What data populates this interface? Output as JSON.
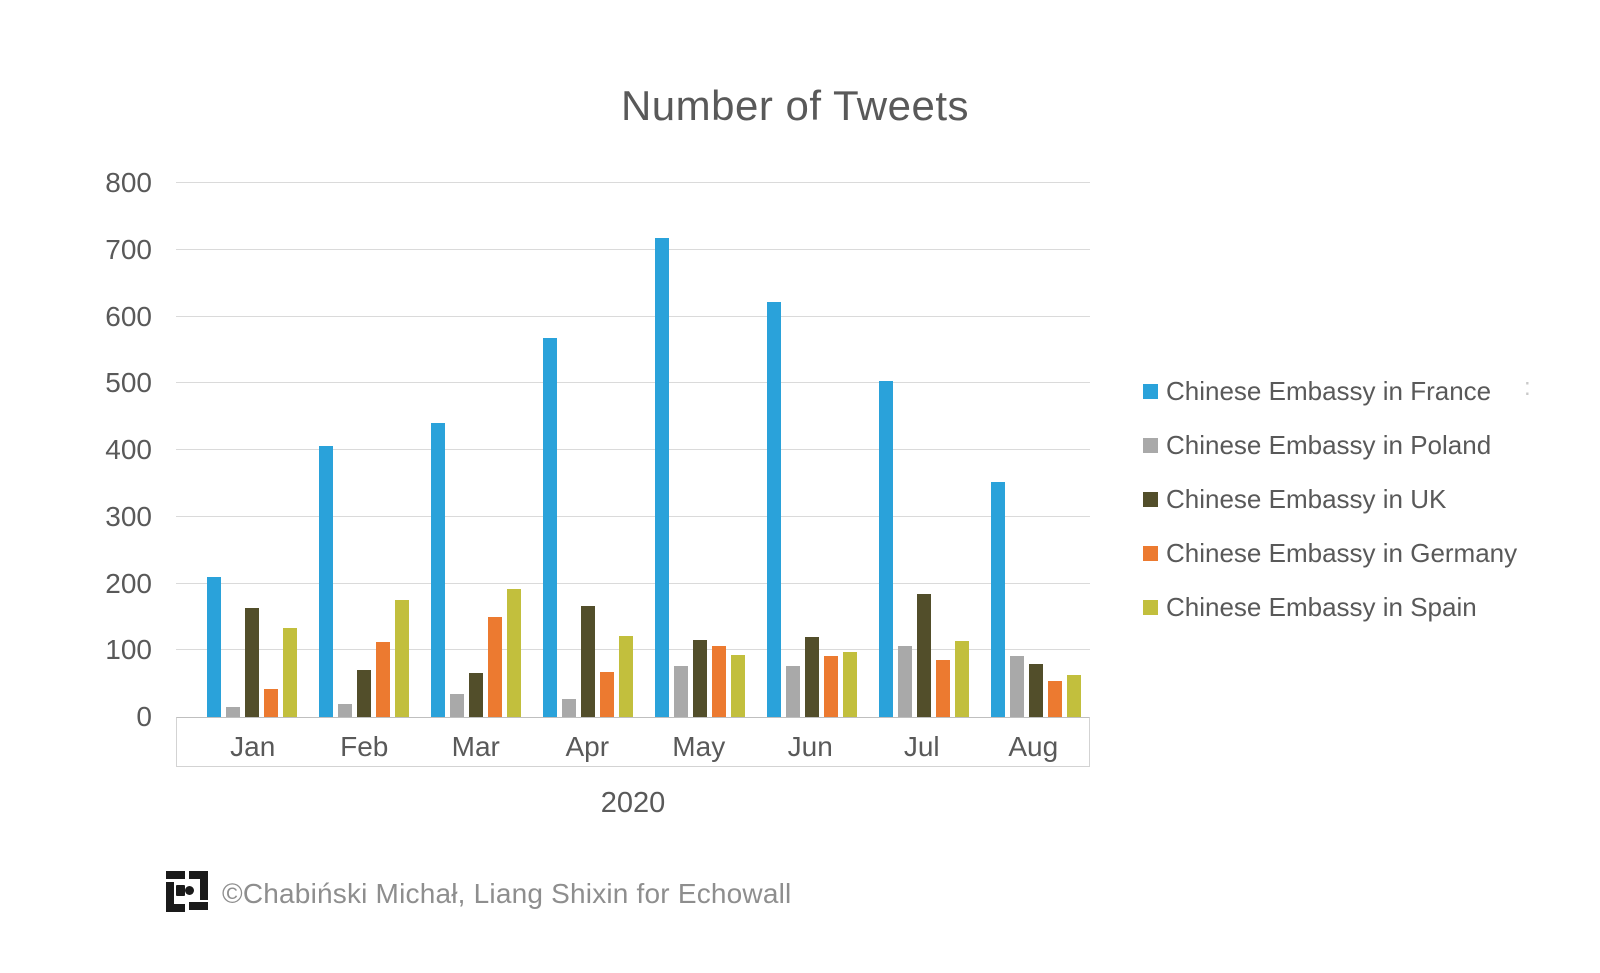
{
  "chart_data": {
    "type": "bar",
    "title": "Number of Tweets",
    "xlabel": "2020",
    "ylabel": "",
    "categories": [
      "Jan",
      "Feb",
      "Mar",
      "Apr",
      "May",
      "Jun",
      "Jul",
      "Aug"
    ],
    "series": [
      {
        "name": "Chinese Embassy in France",
        "key": "france",
        "color": "#2AA2DA",
        "values": [
          210,
          406,
          441,
          568,
          717,
          621,
          504,
          352
        ]
      },
      {
        "name": "Chinese Embassy in Poland",
        "key": "poland",
        "color": "#A9A9A9",
        "values": [
          15,
          20,
          35,
          27,
          77,
          77,
          106,
          91
        ]
      },
      {
        "name": "Chinese Embassy in UK",
        "key": "uk",
        "color": "#524E2A",
        "values": [
          164,
          71,
          66,
          167,
          115,
          120,
          185,
          80
        ]
      },
      {
        "name": "Chinese Embassy in Germany",
        "key": "germany",
        "color": "#EC7A30",
        "values": [
          42,
          113,
          150,
          68,
          106,
          91,
          86,
          54
        ]
      },
      {
        "name": "Chinese Embassy in Spain",
        "key": "spain",
        "color": "#C2BF3D",
        "values": [
          133,
          176,
          192,
          122,
          93,
          97,
          114,
          63
        ]
      }
    ],
    "ylim": [
      0,
      800
    ],
    "yticks": [
      0,
      100,
      200,
      300,
      400,
      500,
      600,
      700,
      800
    ],
    "grid": true,
    "legend_position": "right",
    "legend_overflow_artifact": ":"
  },
  "footer": {
    "credit": "©Chabiński Michał, Liang Shixin for Echowall",
    "logo": "echowall-logo"
  }
}
